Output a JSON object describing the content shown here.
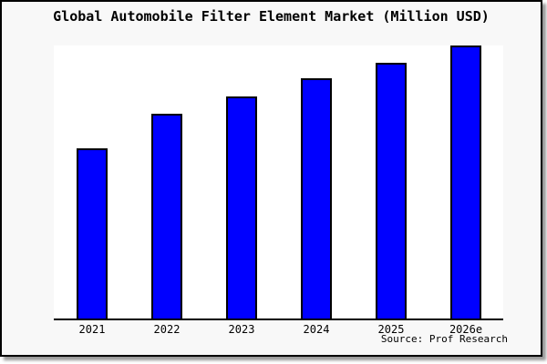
{
  "figure": {
    "title": "Global Automobile Filter Element Market (Million USD)",
    "source": "Source: Prof Research",
    "background_color": "#f8f8f8",
    "plot_background_color": "#ffffff",
    "frame_border_color": "#000000"
  },
  "chart_data": {
    "type": "bar",
    "title": "Global Automobile Filter Element Market (Million USD)",
    "categories": [
      "2021",
      "2022",
      "2023",
      "2024",
      "2025",
      "2026e"
    ],
    "values": [
      187,
      225,
      244,
      264,
      281,
      300
    ],
    "xlabel": "",
    "ylabel": "",
    "ylim": [
      0,
      300
    ],
    "y_axis_labels_shown": false,
    "grid": false,
    "legend": false,
    "bar_color": "#0000ff",
    "bar_border_color": "#000000",
    "axis_line_color": "#000000",
    "annotations": [
      "Source: Prof Research"
    ]
  }
}
